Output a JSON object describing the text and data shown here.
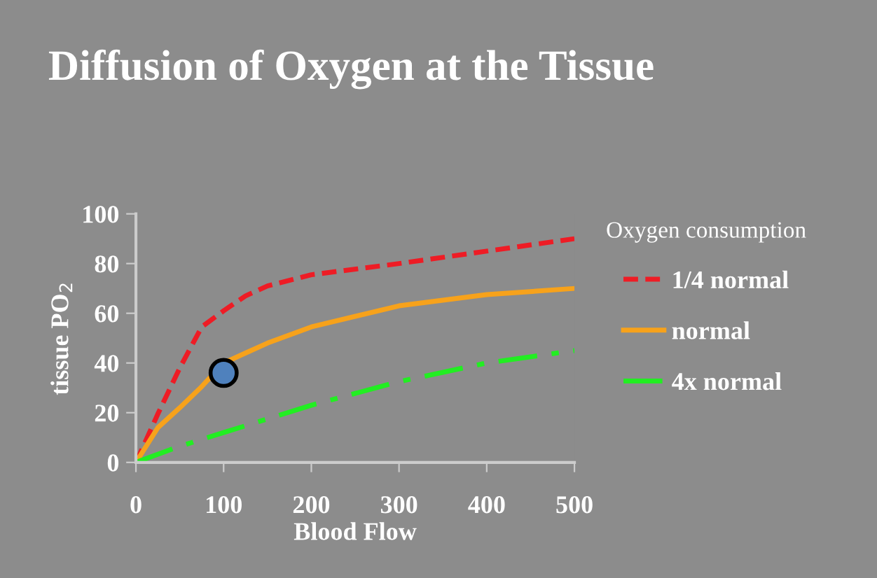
{
  "chart_data": {
    "type": "line",
    "title": "Diffusion of Oxygen at the Tissue",
    "xlabel": "Blood Flow",
    "ylabel": "tissue PO$_{2}$",
    "legend_title": "Oxygen consumption",
    "legend": "right",
    "grid": false,
    "xlim": [
      0,
      500
    ],
    "xticks": [
      0,
      100,
      200,
      300,
      400,
      500
    ],
    "ylim": [
      0,
      100
    ],
    "yticks": [
      0,
      20,
      40,
      60,
      80,
      100
    ],
    "series": [
      {
        "name": "1/4 normal",
        "color": "#ee1c25",
        "line_style": "dashed",
        "x": [
          0,
          25,
          50,
          75,
          100,
          125,
          150,
          200,
          300,
          400,
          500
        ],
        "values": [
          0,
          19.5,
          38,
          54.5,
          61,
          67,
          71,
          75.5,
          80,
          85,
          90
        ]
      },
      {
        "name": "normal",
        "color": "#f7a21b",
        "line_style": "solid",
        "x": [
          0,
          25,
          50,
          75,
          100,
          125,
          150,
          200,
          300,
          400,
          500
        ],
        "values": [
          0,
          14,
          22,
          30.5,
          40,
          44,
          48,
          54.5,
          63,
          67.5,
          70
        ]
      },
      {
        "name": "4x normal",
        "color": "#22ee22",
        "line_style": "dashdot",
        "x": [
          0,
          50,
          100,
          200,
          300,
          400,
          500
        ],
        "values": [
          0,
          6.5,
          12,
          23,
          32.5,
          40,
          45
        ]
      },
      {
        "type": "scatter",
        "color": "#4f81bd",
        "marker": "circle",
        "x": [
          100
        ],
        "values": [
          36
        ]
      }
    ]
  }
}
